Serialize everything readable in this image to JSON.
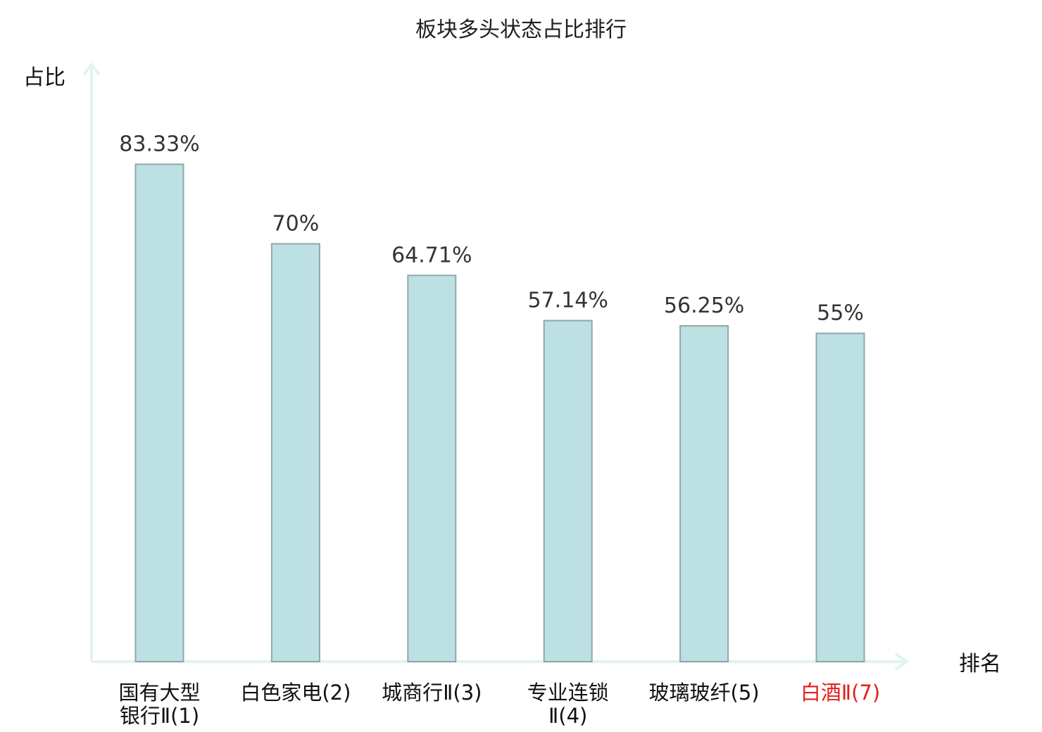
{
  "chart_data": {
    "type": "bar",
    "title": "板块多头状态占比排行",
    "ylabel": "占比",
    "xlabel": "排名",
    "categories": [
      [
        "国有大型",
        "银行Ⅱ(1)"
      ],
      [
        "白色家电(2)"
      ],
      [
        "城商行Ⅱ(3)"
      ],
      [
        "专业连锁",
        "Ⅱ(4)"
      ],
      [
        "玻璃玻纤(5)"
      ],
      [
        "白酒Ⅱ(7)"
      ]
    ],
    "values": [
      83.33,
      70,
      64.71,
      57.14,
      56.25,
      55
    ],
    "value_labels": [
      "83.33%",
      "70%",
      "64.71%",
      "57.14%",
      "56.25%",
      "55%"
    ],
    "highlight_index": 5,
    "ylim": [
      0,
      100
    ],
    "grid": false,
    "legend": "none"
  },
  "colors": {
    "bar_fill": "#bde0e2",
    "bar_stroke": "#8ea8aa",
    "axis": "#e2f3f1",
    "highlight_text": "#e0201b"
  }
}
